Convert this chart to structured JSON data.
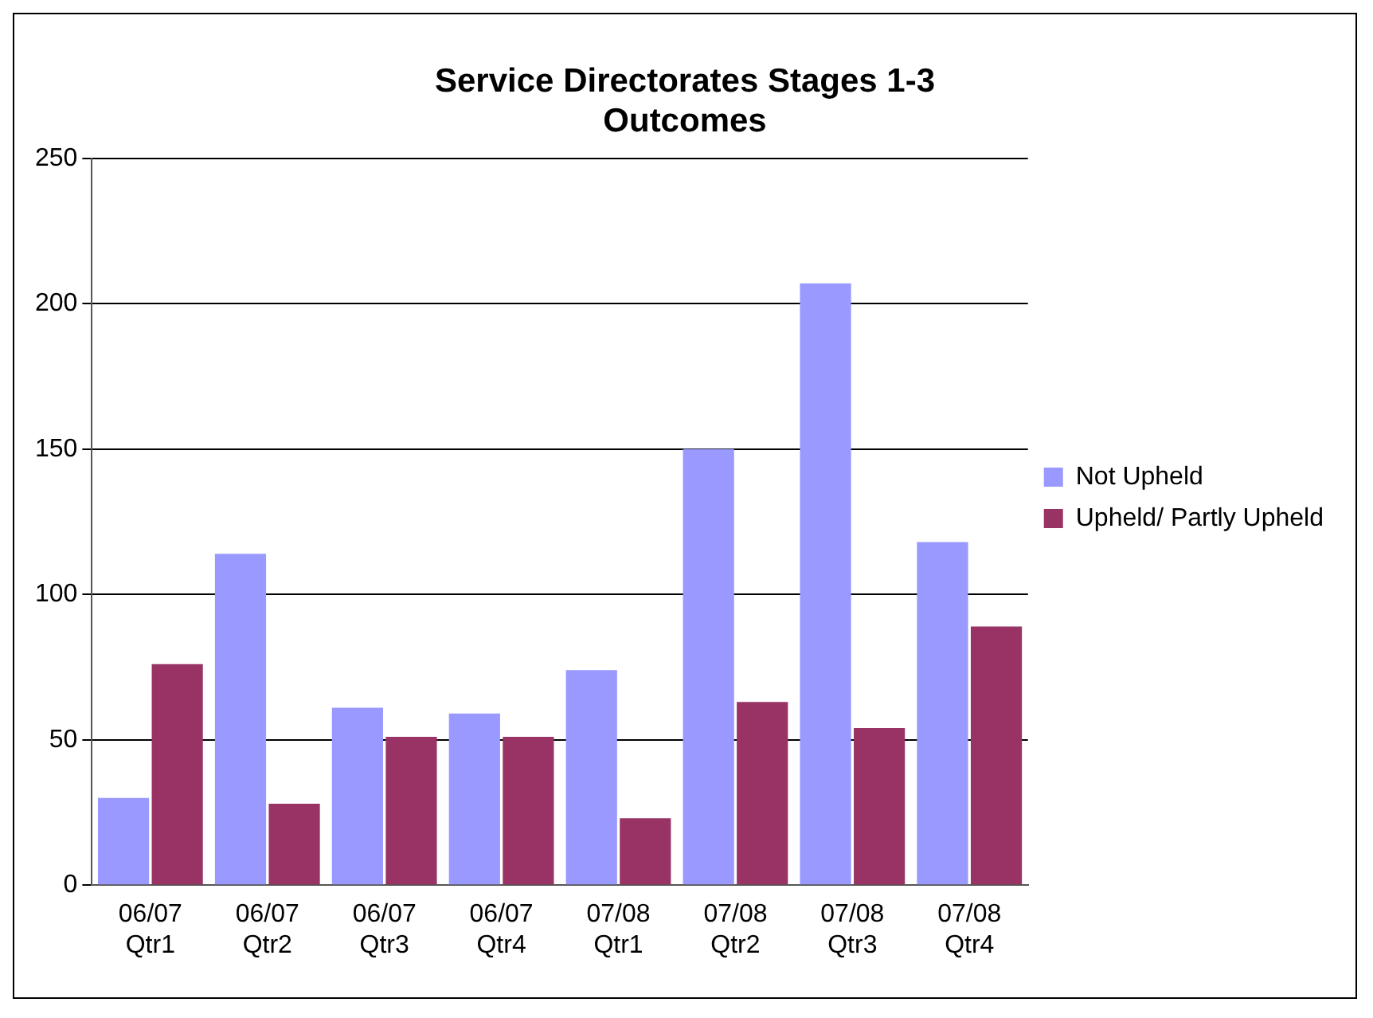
{
  "chart_data": {
    "type": "bar",
    "title": "Service Directorates Stages 1-3\nOutcomes",
    "categories": [
      "06/07\nQtr1",
      "06/07\nQtr2",
      "06/07\nQtr3",
      "06/07\nQtr4",
      "07/08\nQtr1",
      "07/08\nQtr2",
      "07/08\nQtr3",
      "07/08\nQtr4"
    ],
    "series": [
      {
        "name": "Not Upheld",
        "color": "#9999ff",
        "values": [
          30,
          114,
          61,
          59,
          74,
          150,
          207,
          118
        ]
      },
      {
        "name": "Upheld/ Partly Upheld",
        "color": "#993366",
        "values": [
          76,
          28,
          51,
          51,
          23,
          63,
          54,
          89
        ]
      }
    ],
    "ylim": [
      0,
      250
    ],
    "yticks": [
      0,
      50,
      100,
      150,
      200,
      250
    ],
    "grid": "y",
    "legend": "right"
  }
}
